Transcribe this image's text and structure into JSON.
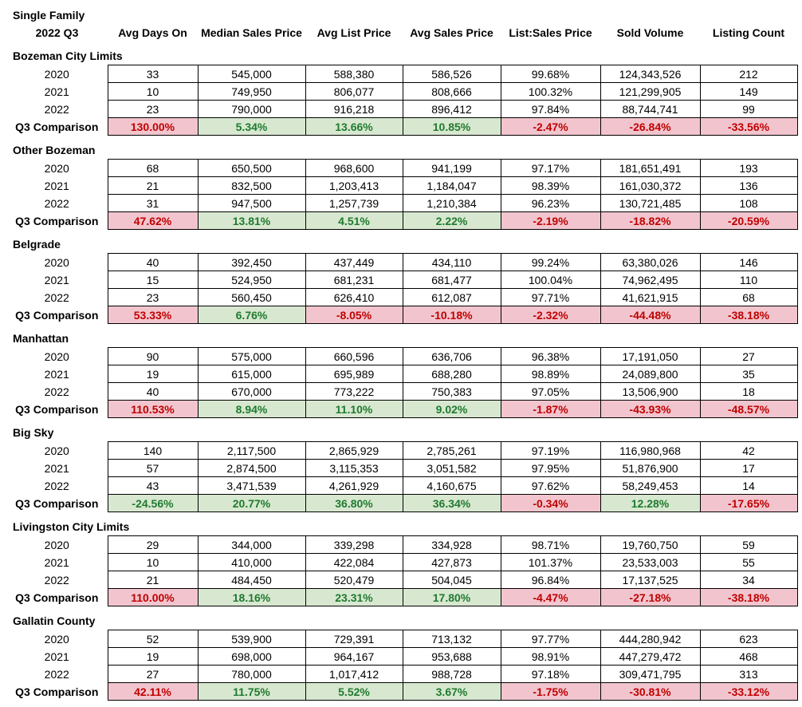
{
  "title": {
    "line1": "Single Family",
    "line2": "2022 Q3"
  },
  "columns": [
    "Avg Days On",
    "Median Sales Price",
    "Avg List Price",
    "Avg Sales Price",
    "List:Sales Price",
    "Sold Volume",
    "Listing Count"
  ],
  "comparison_label": "Q3 Comparison",
  "colors": {
    "bad_bg": "#f2c5ce",
    "bad_text": "#c00000",
    "good_bg": "#d8e8d0",
    "good_text": "#1f7a2f",
    "border": "#000000"
  },
  "sections": [
    {
      "name": "Bozeman City Limits",
      "rows": [
        {
          "label": "2020",
          "values": [
            "33",
            "545,000",
            "588,380",
            "586,526",
            "99.68%",
            "124,343,526",
            "212"
          ]
        },
        {
          "label": "2021",
          "values": [
            "10",
            "749,950",
            "806,077",
            "808,666",
            "100.32%",
            "121,299,905",
            "149"
          ]
        },
        {
          "label": "2022",
          "values": [
            "23",
            "790,000",
            "916,218",
            "896,412",
            "97.84%",
            "88,744,741",
            "99"
          ]
        }
      ],
      "comparison": {
        "values": [
          "130.00%",
          "5.34%",
          "13.66%",
          "10.85%",
          "-2.47%",
          "-26.84%",
          "-33.56%"
        ],
        "styles": [
          "bad",
          "good",
          "good",
          "good",
          "bad",
          "bad",
          "bad"
        ]
      }
    },
    {
      "name": "Other Bozeman",
      "rows": [
        {
          "label": "2020",
          "values": [
            "68",
            "650,500",
            "968,600",
            "941,199",
            "97.17%",
            "181,651,491",
            "193"
          ]
        },
        {
          "label": "2021",
          "values": [
            "21",
            "832,500",
            "1,203,413",
            "1,184,047",
            "98.39%",
            "161,030,372",
            "136"
          ]
        },
        {
          "label": "2022",
          "values": [
            "31",
            "947,500",
            "1,257,739",
            "1,210,384",
            "96.23%",
            "130,721,485",
            "108"
          ]
        }
      ],
      "comparison": {
        "values": [
          "47.62%",
          "13.81%",
          "4.51%",
          "2.22%",
          "-2.19%",
          "-18.82%",
          "-20.59%"
        ],
        "styles": [
          "bad",
          "good",
          "good",
          "good",
          "bad",
          "bad",
          "bad"
        ]
      }
    },
    {
      "name": "Belgrade",
      "rows": [
        {
          "label": "2020",
          "values": [
            "40",
            "392,450",
            "437,449",
            "434,110",
            "99.24%",
            "63,380,026",
            "146"
          ]
        },
        {
          "label": "2021",
          "values": [
            "15",
            "524,950",
            "681,231",
            "681,477",
            "100.04%",
            "74,962,495",
            "110"
          ]
        },
        {
          "label": "2022",
          "values": [
            "23",
            "560,450",
            "626,410",
            "612,087",
            "97.71%",
            "41,621,915",
            "68"
          ]
        }
      ],
      "comparison": {
        "values": [
          "53.33%",
          "6.76%",
          "-8.05%",
          "-10.18%",
          "-2.32%",
          "-44.48%",
          "-38.18%"
        ],
        "styles": [
          "bad",
          "good",
          "bad",
          "bad",
          "bad",
          "bad",
          "bad"
        ]
      }
    },
    {
      "name": "Manhattan",
      "rows": [
        {
          "label": "2020",
          "values": [
            "90",
            "575,000",
            "660,596",
            "636,706",
            "96.38%",
            "17,191,050",
            "27"
          ]
        },
        {
          "label": "2021",
          "values": [
            "19",
            "615,000",
            "695,989",
            "688,280",
            "98.89%",
            "24,089,800",
            "35"
          ]
        },
        {
          "label": "2022",
          "values": [
            "40",
            "670,000",
            "773,222",
            "750,383",
            "97.05%",
            "13,506,900",
            "18"
          ]
        }
      ],
      "comparison": {
        "values": [
          "110.53%",
          "8.94%",
          "11.10%",
          "9.02%",
          "-1.87%",
          "-43.93%",
          "-48.57%"
        ],
        "styles": [
          "bad",
          "good",
          "good",
          "good",
          "bad",
          "bad",
          "bad"
        ]
      }
    },
    {
      "name": "Big Sky",
      "rows": [
        {
          "label": "2020",
          "values": [
            "140",
            "2,117,500",
            "2,865,929",
            "2,785,261",
            "97.19%",
            "116,980,968",
            "42"
          ]
        },
        {
          "label": "2021",
          "values": [
            "57",
            "2,874,500",
            "3,115,353",
            "3,051,582",
            "97.95%",
            "51,876,900",
            "17"
          ]
        },
        {
          "label": "2022",
          "values": [
            "43",
            "3,471,539",
            "4,261,929",
            "4,160,675",
            "97.62%",
            "58,249,453",
            "14"
          ]
        }
      ],
      "comparison": {
        "values": [
          "-24.56%",
          "20.77%",
          "36.80%",
          "36.34%",
          "-0.34%",
          "12.28%",
          "-17.65%"
        ],
        "styles": [
          "good",
          "good",
          "good",
          "good",
          "bad",
          "good",
          "bad"
        ]
      }
    },
    {
      "name": "Livingston City Limits",
      "rows": [
        {
          "label": "2020",
          "values": [
            "29",
            "344,000",
            "339,298",
            "334,928",
            "98.71%",
            "19,760,750",
            "59"
          ]
        },
        {
          "label": "2021",
          "values": [
            "10",
            "410,000",
            "422,084",
            "427,873",
            "101.37%",
            "23,533,003",
            "55"
          ]
        },
        {
          "label": "2022",
          "values": [
            "21",
            "484,450",
            "520,479",
            "504,045",
            "96.84%",
            "17,137,525",
            "34"
          ]
        }
      ],
      "comparison": {
        "values": [
          "110.00%",
          "18.16%",
          "23.31%",
          "17.80%",
          "-4.47%",
          "-27.18%",
          "-38.18%"
        ],
        "styles": [
          "bad",
          "good",
          "good",
          "good",
          "bad",
          "bad",
          "bad"
        ]
      }
    },
    {
      "name": "Gallatin County",
      "rows": [
        {
          "label": "2020",
          "values": [
            "52",
            "539,900",
            "729,391",
            "713,132",
            "97.77%",
            "444,280,942",
            "623"
          ]
        },
        {
          "label": "2021",
          "values": [
            "19",
            "698,000",
            "964,167",
            "953,688",
            "98.91%",
            "447,279,472",
            "468"
          ]
        },
        {
          "label": "2022",
          "values": [
            "27",
            "780,000",
            "1,017,412",
            "988,728",
            "97.18%",
            "309,471,795",
            "313"
          ]
        }
      ],
      "comparison": {
        "values": [
          "42.11%",
          "11.75%",
          "5.52%",
          "3.67%",
          "-1.75%",
          "-30.81%",
          "-33.12%"
        ],
        "styles": [
          "bad",
          "good",
          "good",
          "good",
          "bad",
          "bad",
          "bad"
        ]
      }
    }
  ]
}
